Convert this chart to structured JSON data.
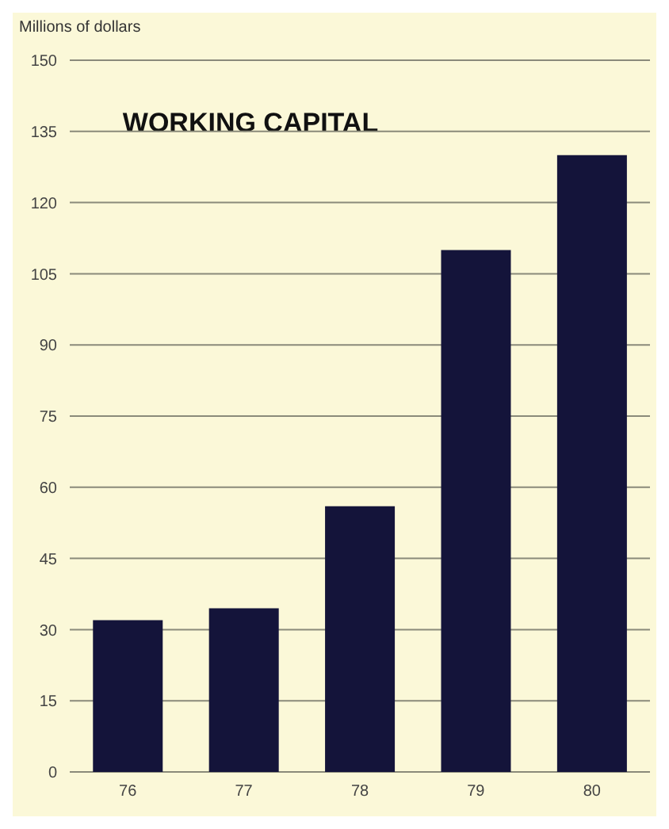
{
  "chart_data": {
    "type": "bar",
    "title": "WORKING CAPITAL",
    "ylabel": "Millions of dollars",
    "categories": [
      "76",
      "77",
      "78",
      "79",
      "80"
    ],
    "values": [
      32,
      34.5,
      56,
      110,
      130
    ],
    "color": "#14143a",
    "ylim": [
      0,
      150
    ],
    "yticks": [
      0,
      15,
      30,
      45,
      60,
      75,
      90,
      105,
      120,
      135,
      150
    ],
    "grid": "y"
  }
}
